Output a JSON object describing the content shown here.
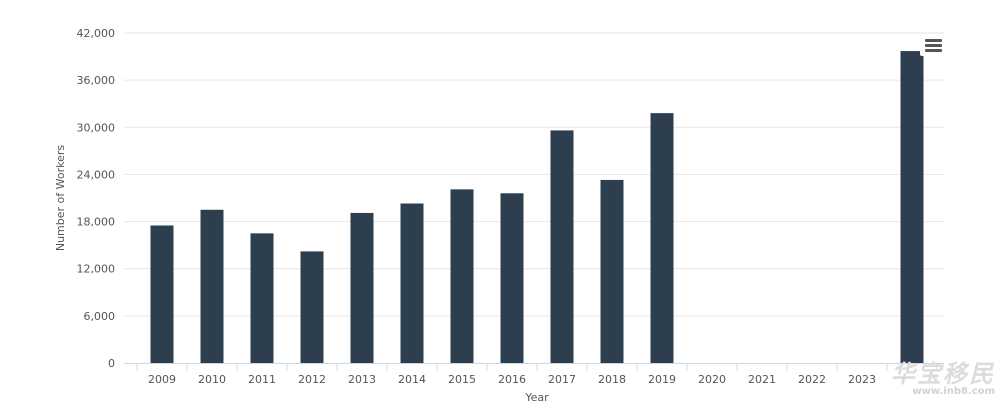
{
  "chart_data": {
    "type": "bar",
    "xlabel": "Year",
    "ylabel": "Number of Workers",
    "ylim": [
      0,
      42000
    ],
    "yticks": [
      0,
      6000,
      12000,
      18000,
      24000,
      30000,
      36000,
      42000
    ],
    "ytick_labels": [
      "0",
      "6,000",
      "12,000",
      "18,000",
      "24,000",
      "30,000",
      "36,000",
      "42,000"
    ],
    "categories": [
      "2009",
      "2010",
      "2011",
      "2012",
      "2013",
      "2014",
      "2015",
      "2016",
      "2017",
      "2018",
      "2019",
      "2020",
      "2021",
      "2022",
      "2023",
      ""
    ],
    "values": [
      17500,
      19500,
      16500,
      14200,
      19100,
      20300,
      22100,
      21600,
      29600,
      23300,
      31800,
      0,
      0,
      0,
      0,
      39700
    ],
    "bar_color": "#2d3e4e",
    "grid": true,
    "legend": "none"
  },
  "menu": {
    "icon": "hamburger-menu-icon"
  },
  "watermark": {
    "chinese": "华宝移民",
    "url": "www.inb8.com"
  }
}
